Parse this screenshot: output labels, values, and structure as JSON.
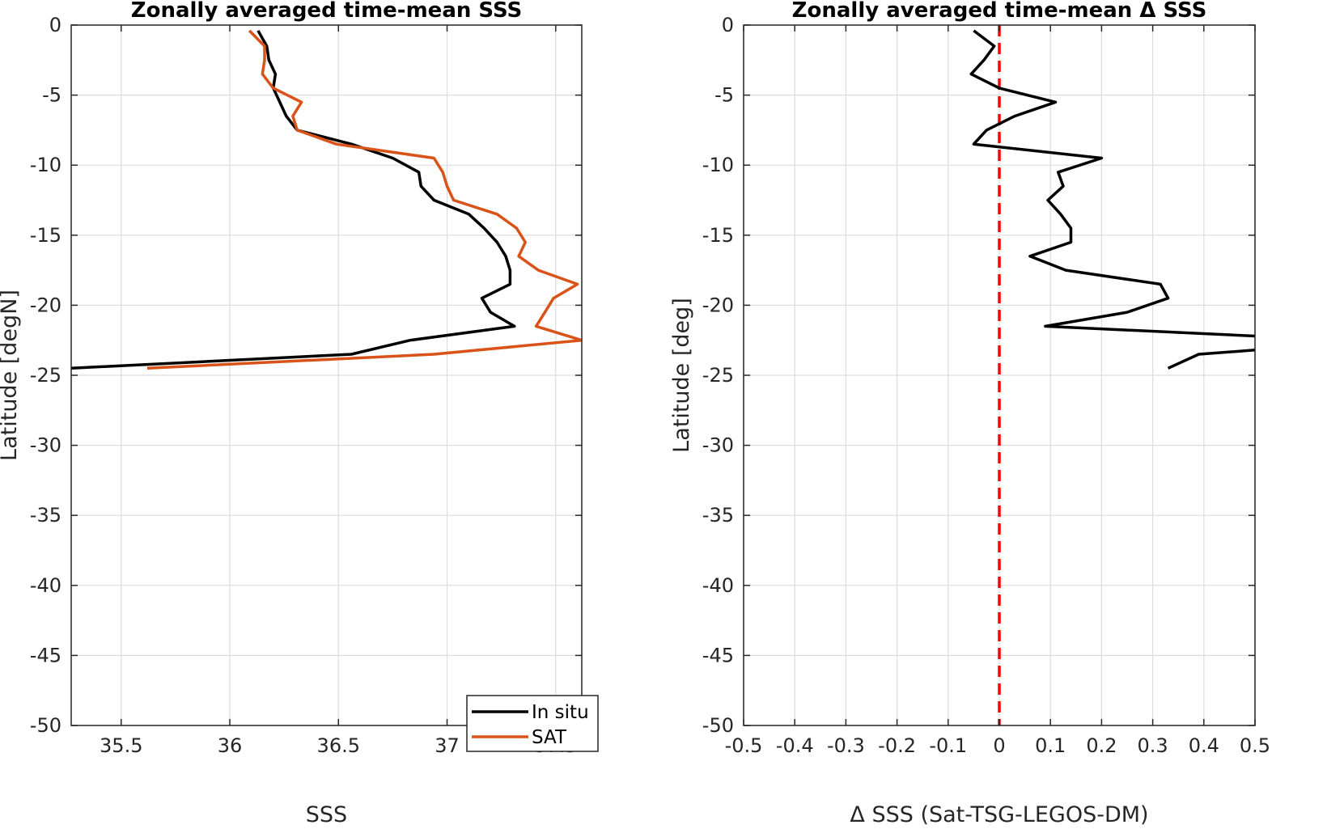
{
  "chart_data": [
    {
      "type": "line",
      "title": "Zonally averaged time-mean SSS",
      "xlabel": "SSS",
      "ylabel": "Latitude [degN]",
      "xlim": [
        35.27,
        37.62
      ],
      "ylim": [
        -50,
        0
      ],
      "xticks": [
        35.5,
        36,
        36.5,
        37,
        37.5
      ],
      "xtick_labels": [
        "35.5",
        "36",
        "36.5",
        "37",
        "37.5"
      ],
      "yticks": [
        0,
        -5,
        -10,
        -15,
        -20,
        -25,
        -30,
        -35,
        -40,
        -45,
        -50
      ],
      "ytick_labels": [
        "0",
        "-5",
        "-10",
        "-15",
        "-20",
        "-25",
        "-30",
        "-35",
        "-40",
        "-45",
        "-50"
      ],
      "grid": true,
      "legend_position": "bottom-right",
      "series": [
        {
          "name": "In situ",
          "color": "#000000",
          "points": [
            [
              36.13,
              -0.4
            ],
            [
              36.17,
              -1.5
            ],
            [
              36.18,
              -2.5
            ],
            [
              36.21,
              -3.5
            ],
            [
              36.2,
              -4.5
            ],
            [
              36.23,
              -5.5
            ],
            [
              36.26,
              -6.5
            ],
            [
              36.31,
              -7.5
            ],
            [
              36.56,
              -8.5
            ],
            [
              36.75,
              -9.5
            ],
            [
              36.87,
              -10.5
            ],
            [
              36.88,
              -11.5
            ],
            [
              36.94,
              -12.5
            ],
            [
              37.1,
              -13.5
            ],
            [
              37.17,
              -14.5
            ],
            [
              37.23,
              -15.5
            ],
            [
              37.27,
              -16.5
            ],
            [
              37.29,
              -17.5
            ],
            [
              37.29,
              -18.5
            ],
            [
              37.16,
              -19.5
            ],
            [
              37.2,
              -20.5
            ],
            [
              37.31,
              -21.5
            ],
            [
              36.83,
              -22.5
            ],
            [
              36.56,
              -23.5
            ],
            [
              35.27,
              -24.5
            ]
          ]
        },
        {
          "name": "SAT",
          "color": "#d95319",
          "points": [
            [
              36.09,
              -0.4
            ],
            [
              36.16,
              -1.5
            ],
            [
              36.16,
              -2.5
            ],
            [
              36.15,
              -3.5
            ],
            [
              36.2,
              -4.5
            ],
            [
              36.33,
              -5.5
            ],
            [
              36.29,
              -6.5
            ],
            [
              36.31,
              -7.5
            ],
            [
              36.49,
              -8.5
            ],
            [
              36.94,
              -9.5
            ],
            [
              36.98,
              -10.5
            ],
            [
              37.0,
              -11.5
            ],
            [
              37.03,
              -12.5
            ],
            [
              37.23,
              -13.5
            ],
            [
              37.32,
              -14.5
            ],
            [
              37.36,
              -15.5
            ],
            [
              37.33,
              -16.5
            ],
            [
              37.42,
              -17.5
            ],
            [
              37.6,
              -18.5
            ],
            [
              37.49,
              -19.5
            ],
            [
              37.45,
              -20.5
            ],
            [
              37.41,
              -21.5
            ],
            [
              37.62,
              -22.5
            ],
            [
              36.94,
              -23.5
            ],
            [
              35.62,
              -24.5
            ]
          ]
        }
      ]
    },
    {
      "type": "line",
      "title": "Zonally averaged time-mean Δ SSS",
      "xlabel": "Δ SSS (Sat-TSG-LEGOS-DM)",
      "ylabel": "Latitude [deg]",
      "xlim": [
        -0.5,
        0.5
      ],
      "ylim": [
        -50,
        0
      ],
      "xticks": [
        -0.5,
        -0.4,
        -0.3,
        -0.2,
        -0.1,
        0,
        0.1,
        0.2,
        0.3,
        0.4,
        0.5
      ],
      "xtick_labels": [
        "-0.5",
        "-0.4",
        "-0.3",
        "-0.2",
        "-0.1",
        "0",
        "0.1",
        "0.2",
        "0.3",
        "0.4",
        "0.5"
      ],
      "yticks": [
        0,
        -5,
        -10,
        -15,
        -20,
        -25,
        -30,
        -35,
        -40,
        -45,
        -50
      ],
      "ytick_labels": [
        "0",
        "-5",
        "-10",
        "-15",
        "-20",
        "-25",
        "-30",
        "-35",
        "-40",
        "-45",
        "-50"
      ],
      "grid": true,
      "reference_line": {
        "x": 0,
        "color": "#ff0000",
        "style": "dashed"
      },
      "series": [
        {
          "color": "#000000",
          "points": [
            [
              -0.05,
              -0.4
            ],
            [
              -0.01,
              -1.5
            ],
            [
              -0.03,
              -2.5
            ],
            [
              -0.055,
              -3.5
            ],
            [
              0.0,
              -4.5
            ],
            [
              0.11,
              -5.5
            ],
            [
              0.03,
              -6.5
            ],
            [
              -0.025,
              -7.5
            ],
            [
              -0.05,
              -8.5
            ],
            [
              0.2,
              -9.5
            ],
            [
              0.115,
              -10.5
            ],
            [
              0.125,
              -11.5
            ],
            [
              0.095,
              -12.5
            ],
            [
              0.12,
              -13.5
            ],
            [
              0.14,
              -14.5
            ],
            [
              0.14,
              -15.5
            ],
            [
              0.06,
              -16.5
            ],
            [
              0.13,
              -17.5
            ],
            [
              0.315,
              -18.5
            ],
            [
              0.33,
              -19.5
            ],
            [
              0.25,
              -20.5
            ],
            [
              0.09,
              -21.5
            ],
            [
              0.5,
              -22.2
            ]
          ]
        },
        {
          "color": "#000000",
          "points": [
            [
              0.5,
              -23.2
            ],
            [
              0.39,
              -23.5
            ],
            [
              0.33,
              -24.5
            ]
          ]
        }
      ]
    }
  ],
  "legend": {
    "items": [
      {
        "label": "In situ",
        "color": "#000000"
      },
      {
        "label": "SAT",
        "color": "#d95319"
      }
    ]
  }
}
